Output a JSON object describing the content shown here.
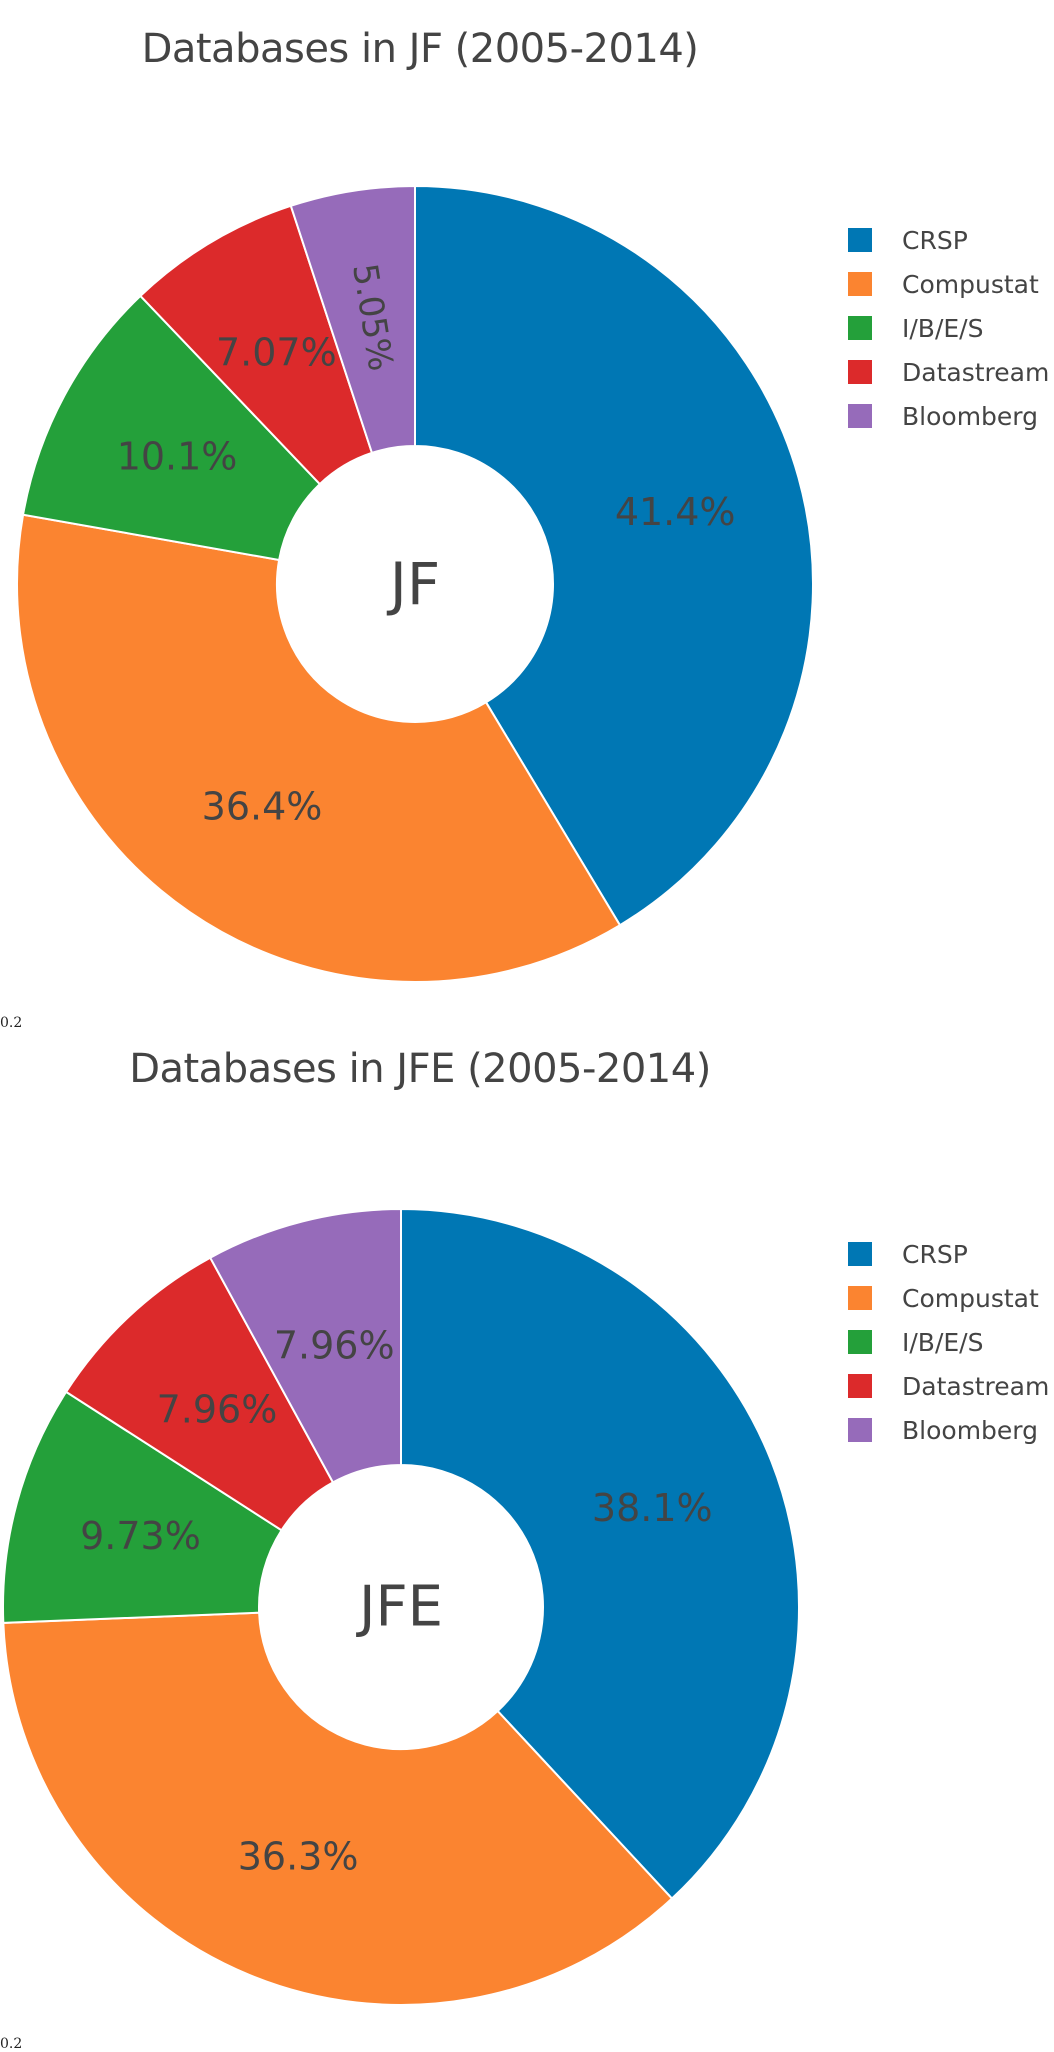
{
  "colors": {
    "CRSP": "#0077b4",
    "Compustat": "#fb8430",
    "I/B/E/S": "#24a03a",
    "Datastream": "#dc2a2b",
    "Bloomberg": "#966bba",
    "label_text": "#444444",
    "center_text": "#444444"
  },
  "chart_data": [
    {
      "type": "pie",
      "hole": true,
      "title": "Databases in JF (2005-2014)",
      "center_label": "JF",
      "labels": [
        "CRSP",
        "Compustat",
        "I/B/E/S",
        "Datastream",
        "Bloomberg"
      ],
      "values": [
        41.4,
        36.4,
        10.1,
        7.07,
        5.05
      ],
      "display_labels": [
        "41.4%",
        "36.4%",
        "10.1%",
        "7.07%",
        "5.05%"
      ],
      "legend_position": "top-right"
    },
    {
      "type": "pie",
      "hole": true,
      "title": "Databases in JFE (2005-2014)",
      "center_label": "JFE",
      "labels": [
        "CRSP",
        "Compustat",
        "I/B/E/S",
        "Datastream",
        "Bloomberg"
      ],
      "values": [
        38.1,
        36.3,
        9.73,
        7.96,
        7.96
      ],
      "display_labels": [
        "38.1%",
        "36.3%",
        "9.73%",
        "7.96%",
        "7.96%"
      ],
      "legend_position": "top-right"
    }
  ],
  "notes": [
    "0.2",
    "0.2"
  ]
}
